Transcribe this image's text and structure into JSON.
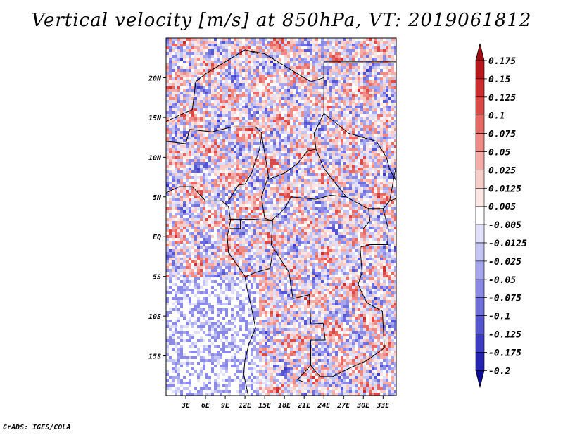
{
  "title": "Vertical velocity [m/s] at 850hPa, VT: 2019061812",
  "credit": "GrADS: IGES/COLA",
  "chart_data": {
    "type": "heatmap",
    "variable": "Vertical velocity",
    "units": "m/s",
    "level": "850hPa",
    "valid_time": "2019061812",
    "x_range_deg_east": [
      0,
      35
    ],
    "y_range_deg_north": [
      -20,
      25
    ],
    "x_ticks": [
      "3E",
      "6E",
      "9E",
      "12E",
      "15E",
      "18E",
      "21E",
      "24E",
      "27E",
      "30E",
      "33E"
    ],
    "x_tick_values": [
      3,
      6,
      9,
      12,
      15,
      18,
      21,
      24,
      27,
      30,
      33
    ],
    "y_ticks": [
      "20N",
      "15N",
      "10N",
      "5N",
      "EQ",
      "5S",
      "10S",
      "15S"
    ],
    "y_tick_values": [
      20,
      15,
      10,
      5,
      0,
      -5,
      -10,
      -15
    ],
    "colorbar": {
      "labels": [
        "0.175",
        "0.15",
        "0.125",
        "0.1",
        "0.075",
        "0.05",
        "0.025",
        "0.0125",
        "0.005",
        "-0.005",
        "-0.0125",
        "-0.025",
        "-0.05",
        "-0.075",
        "-0.1",
        "-0.125",
        "-0.175",
        "-0.2"
      ],
      "colors": [
        "#a00e14",
        "#b8171e",
        "#cc2e31",
        "#dc4a48",
        "#e66965",
        "#ef8b86",
        "#f5aca7",
        "#f8ccc8",
        "#fbe6e4",
        "#ffffff",
        "#e0e0fa",
        "#c4c4f4",
        "#a6a6ee",
        "#8a8ae6",
        "#6f6fdc",
        "#5656d0",
        "#3c3cc2",
        "#2424b0",
        "#0c0c98"
      ],
      "extend": "both"
    },
    "grid": false
  }
}
